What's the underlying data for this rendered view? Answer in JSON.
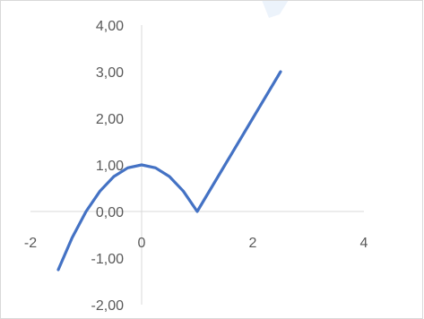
{
  "chart_data": {
    "type": "line",
    "title": "",
    "xlabel": "",
    "ylabel": "",
    "xlim": [
      -2,
      4
    ],
    "ylim": [
      -2,
      4
    ],
    "x_ticks": [
      -2,
      0,
      2,
      4
    ],
    "x_tick_labels": [
      "-2",
      "0",
      "2",
      "4"
    ],
    "y_ticks": [
      4,
      3,
      2,
      1,
      0,
      -1,
      -2
    ],
    "y_tick_labels": [
      "4,00",
      "3,00",
      "2,00",
      "1,00",
      "0,00",
      "-1,00",
      "-2,00"
    ],
    "grid": false,
    "legend": "none",
    "series": [
      {
        "color": "#4472c4",
        "points": [
          [
            -1.5,
            -1.25
          ],
          [
            -1.25,
            -0.5625
          ],
          [
            -1.0,
            0.0
          ],
          [
            -0.75,
            0.4375
          ],
          [
            -0.5,
            0.75
          ],
          [
            -0.25,
            0.9375
          ],
          [
            0.0,
            1.0
          ],
          [
            0.25,
            0.9375
          ],
          [
            0.5,
            0.75
          ],
          [
            0.75,
            0.4375
          ],
          [
            1.0,
            0.0
          ],
          [
            1.5,
            1.0
          ],
          [
            2.0,
            2.0
          ],
          [
            2.5,
            3.0
          ]
        ]
      }
    ]
  }
}
